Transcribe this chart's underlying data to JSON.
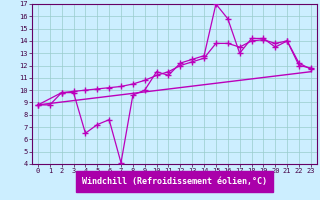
{
  "xlabel": "Windchill (Refroidissement éolien,°C)",
  "bg_color": "#cceeff",
  "line_color": "#bb00bb",
  "grid_color": "#99cccc",
  "xlim": [
    -0.5,
    23.5
  ],
  "ylim": [
    4,
    17
  ],
  "xticks": [
    0,
    1,
    2,
    3,
    4,
    5,
    6,
    7,
    8,
    9,
    10,
    11,
    12,
    13,
    14,
    15,
    16,
    17,
    18,
    19,
    20,
    21,
    22,
    23
  ],
  "yticks": [
    4,
    5,
    6,
    7,
    8,
    9,
    10,
    11,
    12,
    13,
    14,
    15,
    16,
    17
  ],
  "line1_x": [
    0,
    1,
    2,
    3,
    4,
    5,
    6,
    7,
    8,
    9,
    10,
    11,
    12,
    13,
    14,
    15,
    16,
    17,
    18,
    19,
    20,
    21,
    22,
    23
  ],
  "line1_y": [
    8.8,
    8.8,
    9.8,
    9.8,
    6.5,
    7.2,
    7.6,
    4.1,
    9.6,
    10.0,
    11.5,
    11.2,
    12.2,
    12.5,
    12.8,
    17.0,
    15.8,
    13.0,
    14.2,
    14.2,
    13.5,
    14.0,
    12.0,
    11.8
  ],
  "line2_x": [
    0,
    23
  ],
  "line2_y": [
    8.8,
    11.5
  ],
  "line3_x": [
    0,
    2,
    3,
    4,
    5,
    6,
    7,
    8,
    9,
    10,
    11,
    12,
    13,
    14,
    15,
    16,
    17,
    18,
    19,
    20,
    21,
    22,
    23
  ],
  "line3_y": [
    8.8,
    9.8,
    9.9,
    10.0,
    10.1,
    10.2,
    10.3,
    10.5,
    10.8,
    11.2,
    11.5,
    12.0,
    12.3,
    12.6,
    13.8,
    13.8,
    13.5,
    14.0,
    14.1,
    13.8,
    14.0,
    12.2,
    11.7
  ]
}
